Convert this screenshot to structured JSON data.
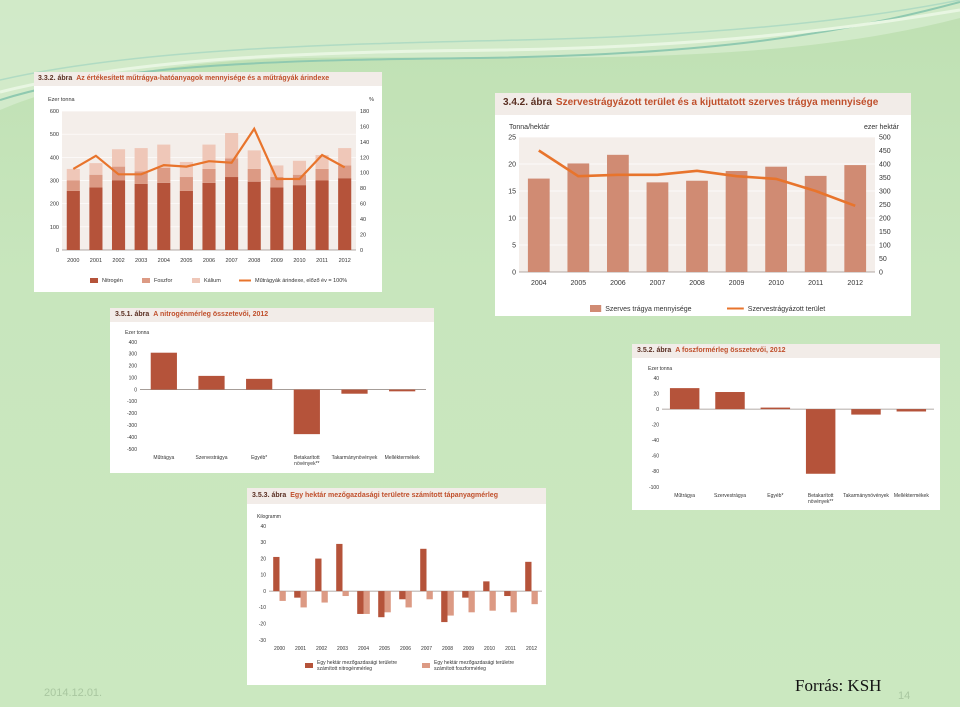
{
  "slide": {
    "source": "Forrás: KSH",
    "date": "2014.12.01.",
    "page": "14",
    "background": "#c8e6bd"
  },
  "chart_data": [
    {
      "id": "c1",
      "number": "3.3.2. ábra",
      "title": "Az értékesített műtrágya-hatóanyagok mennyisége és a műtrágyák árindexe",
      "type": "bar",
      "stacked": true,
      "left_unit": "Ezer tonna",
      "right_unit": "%",
      "categories": [
        "2000",
        "2001",
        "2002",
        "2003",
        "2004",
        "2005",
        "2006",
        "2007",
        "2008",
        "2009",
        "2010",
        "2011",
        "2012"
      ],
      "ylim": [
        0,
        600
      ],
      "yticks": [
        0,
        100,
        200,
        300,
        400,
        500,
        600
      ],
      "y2lim": [
        0,
        180
      ],
      "y2ticks": [
        0,
        20,
        40,
        60,
        80,
        100,
        120,
        140,
        160,
        180
      ],
      "series": [
        {
          "name": "Nitrogén",
          "color": "#b5533a",
          "values": [
            255,
            270,
            300,
            285,
            290,
            255,
            290,
            315,
            295,
            270,
            280,
            300,
            310
          ]
        },
        {
          "name": "Foszfor",
          "color": "#dc9a84",
          "values": [
            45,
            55,
            60,
            55,
            65,
            60,
            60,
            80,
            55,
            45,
            45,
            50,
            55
          ]
        },
        {
          "name": "Kálium",
          "color": "#efc7b8",
          "values": [
            50,
            50,
            75,
            100,
            100,
            65,
            105,
            110,
            80,
            50,
            60,
            60,
            75
          ]
        }
      ],
      "line": {
        "name": "Műtrágyák árindexe, előző év = 100%",
        "color": "#e8742c",
        "values": [
          105,
          122,
          98,
          98,
          110,
          108,
          115,
          113,
          157,
          92,
          92,
          123,
          107
        ]
      },
      "legend_position": "bottom"
    },
    {
      "id": "c2",
      "number": "3.4.2. ábra",
      "title": "Szervestrágyázott terület és a kijuttatott szerves trágya mennyisége",
      "type": "bar",
      "left_unit": "Tonna/hektár",
      "right_unit": "ezer hektár",
      "categories": [
        "2004",
        "2005",
        "2006",
        "2007",
        "2008",
        "2009",
        "2010",
        "2011",
        "2012"
      ],
      "ylim": [
        0,
        25
      ],
      "yticks": [
        0,
        5,
        10,
        15,
        20,
        25
      ],
      "y2lim": [
        0,
        500
      ],
      "y2ticks": [
        0,
        50,
        100,
        150,
        200,
        250,
        300,
        350,
        400,
        450,
        500
      ],
      "series": [
        {
          "name": "Szerves trágya mennyisége",
          "color": "#d08b73",
          "values": [
            17.3,
            20.1,
            21.7,
            16.6,
            16.9,
            18.7,
            19.5,
            17.8,
            19.8
          ]
        }
      ],
      "line": {
        "name": "Szervestrágyázott terület",
        "color": "#e8742c",
        "values": [
          450,
          355,
          360,
          360,
          375,
          355,
          345,
          300,
          245
        ]
      },
      "legend_position": "bottom"
    },
    {
      "id": "c3",
      "number": "3.5.1. ábra",
      "title": "A nitrogénmérleg összetevői, 2012",
      "type": "bar",
      "left_unit": "Ezer tonna",
      "categories": [
        "Műtrágya",
        "Szervestrágya",
        "Egyéb*",
        "Betakarított növények**",
        "Takarmánynövények",
        "Melléktermékek"
      ],
      "ylim": [
        -500,
        400
      ],
      "yticks": [
        -500,
        -400,
        -300,
        -200,
        -100,
        0,
        100,
        200,
        300,
        400
      ],
      "series": [
        {
          "name": "",
          "color": "#b5533a",
          "values": [
            310,
            115,
            90,
            -375,
            -35,
            -15
          ]
        }
      ]
    },
    {
      "id": "c4",
      "number": "3.5.2. ábra",
      "title": "A foszformérleg összetevői, 2012",
      "type": "bar",
      "left_unit": "Ezer tonna",
      "categories": [
        "Műtrágya",
        "Szervestrágya",
        "Egyéb*",
        "Betakarított növények**",
        "Takarmánynövények",
        "Melléktermékek"
      ],
      "ylim": [
        -100,
        40
      ],
      "yticks": [
        -100,
        -80,
        -60,
        -40,
        -20,
        0,
        20,
        40
      ],
      "series": [
        {
          "name": "",
          "color": "#b5533a",
          "values": [
            27,
            22,
            2,
            -83,
            -7,
            -3
          ]
        }
      ]
    },
    {
      "id": "c5",
      "number": "3.5.3. ábra",
      "title": "Egy hektár mezőgazdasági területre számított tápanyagmérleg",
      "type": "bar",
      "left_unit": "Kilogramm",
      "categories": [
        "2000",
        "2001",
        "2002",
        "2003",
        "2004",
        "2005",
        "2006",
        "2007",
        "2008",
        "2009",
        "2010",
        "2011",
        "2012"
      ],
      "ylim": [
        -30,
        40
      ],
      "yticks": [
        -30,
        -20,
        -10,
        0,
        10,
        20,
        30,
        40
      ],
      "series": [
        {
          "name": "Egy hektár mezőgazdasági területre számított nitrogénmérleg",
          "color": "#b5533a",
          "values": [
            21,
            -4,
            20,
            29,
            -14,
            -16,
            -5,
            26,
            -19,
            -4,
            6,
            -3,
            18
          ]
        },
        {
          "name": "Egy hektár mezőgazdasági területre számított foszformérleg",
          "color": "#dc9a84",
          "values": [
            -6,
            -10,
            -7,
            -3,
            -14,
            -13,
            -10,
            -5,
            -15,
            -13,
            -12,
            -13,
            -8
          ]
        }
      ],
      "legend_position": "bottom"
    }
  ]
}
